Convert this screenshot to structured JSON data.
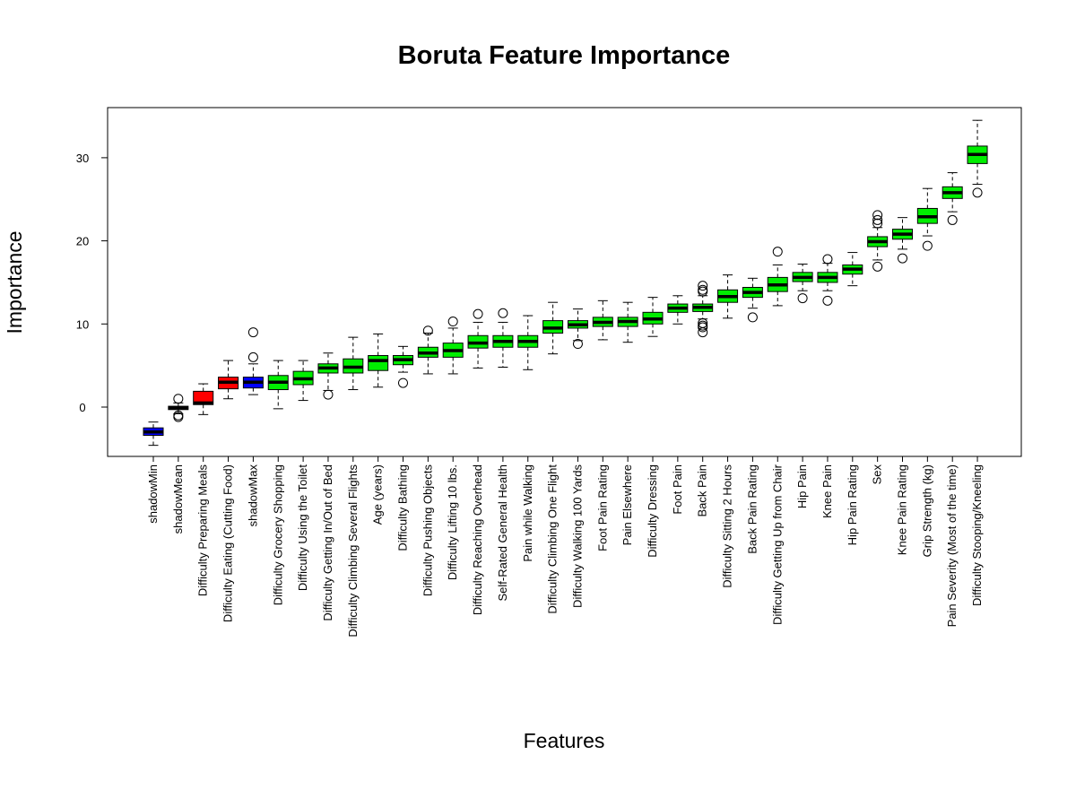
{
  "chart_data": {
    "type": "box",
    "title": "Boruta Feature Importance",
    "xlabel": "Features",
    "ylabel": "Importance",
    "ylim": [
      -6,
      36
    ],
    "yticks": [
      0,
      10,
      20,
      30
    ],
    "grid": false,
    "legend": "none",
    "colors": {
      "Confirmed": "#00ee00",
      "Rejected": "#ff0000",
      "Shadow": "#0000ff"
    },
    "categories": [
      "shadowMin",
      "shadowMean",
      "Difficulty Preparing Meals",
      "Difficulty Eating (Cutting Food)",
      "shadowMax",
      "Difficulty Grocery Shopping",
      "Difficulty Using the Toilet",
      "Difficulty Getting In/Out of Bed",
      "Difficulty Climbing Several Flights",
      "Age (years)",
      "Difficulty Bathing",
      "Difficulty Pushing Objects",
      "Difficulty Lifting 10 lbs.",
      "Difficulty Reaching Overhead",
      "Self-Rated General Health",
      "Pain while Walking",
      "Difficulty Climbing One Flight",
      "Difficulty Walking 100 Yards",
      "Foot Pain Rating",
      "Pain Elsewhere",
      "Difficulty Dressing",
      "Foot Pain",
      "Back Pain",
      "Difficulty Sitting 2 Hours",
      "Back Pain Rating",
      "Difficulty Getting Up from Chair",
      "Hip Pain",
      "Knee Pain",
      "Hip Pain Rating",
      "Sex",
      "Knee Pain Rating",
      "Grip Strength (kg)",
      "Pain Severity (Most of the time)",
      "Difficulty Stooping/Kneeling"
    ],
    "boxes": [
      {
        "decision": "Shadow",
        "min": -4.6,
        "q1": -3.4,
        "median": -3.0,
        "q3": -2.5,
        "max": -1.8,
        "outliers": []
      },
      {
        "decision": "Shadow",
        "min": -0.8,
        "q1": -0.3,
        "median": -0.1,
        "q3": 0.1,
        "max": 0.5,
        "outliers": [
          1.0,
          -1.0,
          -1.2
        ]
      },
      {
        "decision": "Rejected",
        "min": -0.9,
        "q1": 0.3,
        "median": 0.5,
        "q3": 1.9,
        "max": 2.8,
        "outliers": []
      },
      {
        "decision": "Rejected",
        "min": 1.0,
        "q1": 2.2,
        "median": 3.0,
        "q3": 3.6,
        "max": 5.6,
        "outliers": []
      },
      {
        "decision": "Shadow",
        "min": 1.5,
        "q1": 2.3,
        "median": 3.0,
        "q3": 3.6,
        "max": 5.2,
        "outliers": [
          9.0,
          6.0
        ]
      },
      {
        "decision": "Confirmed",
        "min": -0.2,
        "q1": 2.1,
        "median": 3.0,
        "q3": 3.8,
        "max": 5.6,
        "outliers": []
      },
      {
        "decision": "Confirmed",
        "min": 0.8,
        "q1": 2.7,
        "median": 3.4,
        "q3": 4.3,
        "max": 5.6,
        "outliers": []
      },
      {
        "decision": "Confirmed",
        "min": 2.0,
        "q1": 4.1,
        "median": 4.7,
        "q3": 5.2,
        "max": 6.5,
        "outliers": [
          1.5
        ]
      },
      {
        "decision": "Confirmed",
        "min": 2.1,
        "q1": 4.1,
        "median": 4.8,
        "q3": 5.8,
        "max": 8.4,
        "outliers": []
      },
      {
        "decision": "Confirmed",
        "min": 2.4,
        "q1": 4.4,
        "median": 5.6,
        "q3": 6.2,
        "max": 8.8,
        "outliers": []
      },
      {
        "decision": "Confirmed",
        "min": 4.2,
        "q1": 5.1,
        "median": 5.7,
        "q3": 6.2,
        "max": 7.3,
        "outliers": [
          2.9
        ]
      },
      {
        "decision": "Confirmed",
        "min": 4.0,
        "q1": 6.0,
        "median": 6.5,
        "q3": 7.2,
        "max": 8.9,
        "outliers": [
          9.2
        ]
      },
      {
        "decision": "Confirmed",
        "min": 4.0,
        "q1": 6.0,
        "median": 6.8,
        "q3": 7.7,
        "max": 9.5,
        "outliers": [
          10.3
        ]
      },
      {
        "decision": "Confirmed",
        "min": 4.7,
        "q1": 7.1,
        "median": 7.7,
        "q3": 8.6,
        "max": 10.2,
        "outliers": [
          11.2
        ]
      },
      {
        "decision": "Confirmed",
        "min": 4.8,
        "q1": 7.2,
        "median": 7.9,
        "q3": 8.6,
        "max": 10.2,
        "outliers": [
          11.3
        ]
      },
      {
        "decision": "Confirmed",
        "min": 4.5,
        "q1": 7.2,
        "median": 7.9,
        "q3": 8.6,
        "max": 11.0,
        "outliers": []
      },
      {
        "decision": "Confirmed",
        "min": 6.4,
        "q1": 8.9,
        "median": 9.5,
        "q3": 10.4,
        "max": 12.6,
        "outliers": []
      },
      {
        "decision": "Confirmed",
        "min": 8.0,
        "q1": 9.5,
        "median": 9.9,
        "q3": 10.4,
        "max": 11.8,
        "outliers": [
          7.6
        ]
      },
      {
        "decision": "Confirmed",
        "min": 8.1,
        "q1": 9.7,
        "median": 10.2,
        "q3": 10.8,
        "max": 12.8,
        "outliers": []
      },
      {
        "decision": "Confirmed",
        "min": 7.8,
        "q1": 9.7,
        "median": 10.3,
        "q3": 10.8,
        "max": 12.6,
        "outliers": []
      },
      {
        "decision": "Confirmed",
        "min": 8.5,
        "q1": 10.0,
        "median": 10.6,
        "q3": 11.4,
        "max": 13.2,
        "outliers": []
      },
      {
        "decision": "Confirmed",
        "min": 10.0,
        "q1": 11.4,
        "median": 11.9,
        "q3": 12.4,
        "max": 13.4,
        "outliers": []
      },
      {
        "decision": "Confirmed",
        "min": 10.6,
        "q1": 11.5,
        "median": 12.0,
        "q3": 12.4,
        "max": 13.4,
        "outliers": [
          14.6,
          14.1,
          13.9,
          10.1,
          9.8,
          9.6,
          9.0
        ]
      },
      {
        "decision": "Confirmed",
        "min": 10.7,
        "q1": 12.6,
        "median": 13.3,
        "q3": 14.1,
        "max": 15.9,
        "outliers": []
      },
      {
        "decision": "Confirmed",
        "min": 11.9,
        "q1": 13.2,
        "median": 13.8,
        "q3": 14.4,
        "max": 15.5,
        "outliers": [
          10.8
        ]
      },
      {
        "decision": "Confirmed",
        "min": 12.2,
        "q1": 13.9,
        "median": 14.7,
        "q3": 15.6,
        "max": 17.1,
        "outliers": [
          18.7
        ]
      },
      {
        "decision": "Confirmed",
        "min": 14.0,
        "q1": 15.1,
        "median": 15.6,
        "q3": 16.2,
        "max": 17.2,
        "outliers": [
          13.1
        ]
      },
      {
        "decision": "Confirmed",
        "min": 14.0,
        "q1": 15.0,
        "median": 15.6,
        "q3": 16.2,
        "max": 17.3,
        "outliers": [
          17.8,
          12.8
        ]
      },
      {
        "decision": "Confirmed",
        "min": 14.6,
        "q1": 16.0,
        "median": 16.6,
        "q3": 17.1,
        "max": 18.6,
        "outliers": []
      },
      {
        "decision": "Confirmed",
        "min": 17.7,
        "q1": 19.3,
        "median": 19.9,
        "q3": 20.5,
        "max": 21.6,
        "outliers": [
          23.1,
          22.5,
          22.1,
          16.9
        ]
      },
      {
        "decision": "Confirmed",
        "min": 19.0,
        "q1": 20.2,
        "median": 20.8,
        "q3": 21.4,
        "max": 22.8,
        "outliers": [
          17.9
        ]
      },
      {
        "decision": "Confirmed",
        "min": 20.6,
        "q1": 22.1,
        "median": 22.9,
        "q3": 23.9,
        "max": 26.3,
        "outliers": [
          19.4
        ]
      },
      {
        "decision": "Confirmed",
        "min": 23.5,
        "q1": 25.1,
        "median": 25.8,
        "q3": 26.5,
        "max": 28.2,
        "outliers": [
          22.5
        ]
      },
      {
        "decision": "Confirmed",
        "min": 26.8,
        "q1": 29.3,
        "median": 30.4,
        "q3": 31.4,
        "max": 34.5,
        "outliers": [
          25.8
        ]
      }
    ]
  }
}
